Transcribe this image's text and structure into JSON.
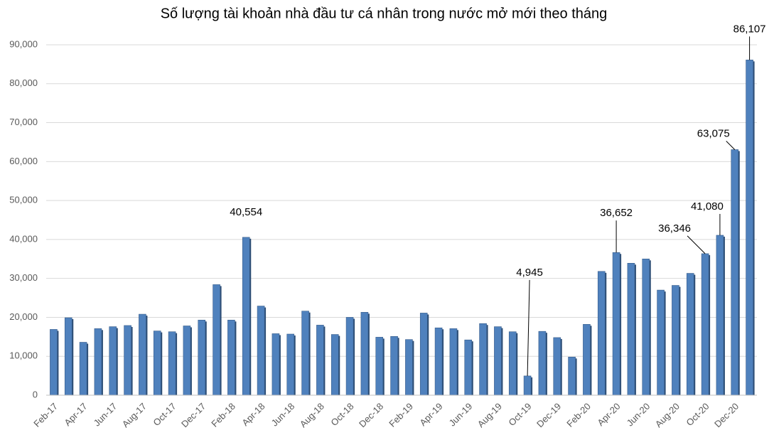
{
  "chart_data": {
    "type": "bar",
    "title": "Số lượng tài khoản nhà đầu tư cá nhân trong nước mở mới theo tháng",
    "categories": [
      "Feb-17",
      null,
      "Apr-17",
      null,
      "Jun-17",
      null,
      "Aug-17",
      null,
      "Oct-17",
      null,
      "Dec-17",
      null,
      "Feb-18",
      null,
      "Apr-18",
      null,
      "Jun-18",
      null,
      "Aug-18",
      null,
      "Oct-18",
      null,
      "Dec-18",
      null,
      "Feb-19",
      null,
      "Apr-19",
      null,
      "Jun-19",
      null,
      "Aug-19",
      null,
      "Oct-19",
      null,
      "Dec-19",
      null,
      "Feb-20",
      null,
      "Apr-20",
      null,
      "Jun-20",
      null,
      "Aug-20",
      null,
      "Oct-20",
      null,
      "Dec-20",
      null
    ],
    "values": [
      16900,
      19900,
      13600,
      17100,
      17600,
      17900,
      20800,
      16500,
      16300,
      17800,
      19300,
      28400,
      19300,
      40554,
      22900,
      15800,
      15700,
      21600,
      18000,
      15600,
      20000,
      21300,
      14900,
      15100,
      14300,
      21100,
      17300,
      17100,
      14200,
      18400,
      17600,
      16300,
      4945,
      16400,
      14800,
      9800,
      18200,
      31800,
      36652,
      33900,
      35000,
      27000,
      28200,
      31300,
      36346,
      41080,
      63075,
      86107
    ],
    "value_labels": [
      null,
      null,
      null,
      null,
      null,
      null,
      null,
      null,
      null,
      null,
      null,
      null,
      null,
      "40,554",
      null,
      null,
      null,
      null,
      null,
      null,
      null,
      null,
      null,
      null,
      null,
      null,
      null,
      null,
      null,
      null,
      null,
      null,
      "4,945",
      null,
      null,
      null,
      null,
      null,
      "36,652",
      null,
      null,
      null,
      null,
      null,
      "36,346",
      "41,080",
      "63,075",
      "86,107"
    ],
    "color": "#4f81bd",
    "ylim": [
      0,
      90000
    ],
    "yticks": [
      0,
      {
        "value": 10000,
        "label": "10,000"
      },
      {
        "value": 20000,
        "label": "20,000"
      },
      {
        "value": 30000,
        "label": "30,000"
      },
      {
        "value": 40000,
        "label": "40,000"
      },
      {
        "value": 50000,
        "label": "50,000"
      },
      {
        "value": 60000,
        "label": "60,000"
      },
      {
        "value": 70000,
        "label": "70,000"
      },
      {
        "value": 80000,
        "label": "80,000"
      },
      {
        "value": 90000,
        "label": "90,000"
      }
    ],
    "grid": true
  }
}
